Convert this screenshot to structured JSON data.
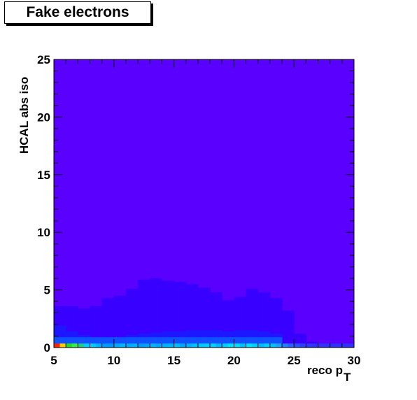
{
  "chart_data": {
    "type": "heatmap",
    "title": "Fake electrons",
    "xlabel": "reco p",
    "xlabel_subscript": "T",
    "ylabel": "HCAL abs iso",
    "xlim": [
      5,
      30
    ],
    "ylim": [
      0,
      25
    ],
    "x_ticks": [
      "5",
      "10",
      "15",
      "20",
      "25",
      "30"
    ],
    "y_ticks": [
      "0",
      "5",
      "10",
      "15",
      "20",
      "25"
    ],
    "colors": {
      "background": "#5a00ff",
      "level1": "#3700ff",
      "level2": "#1c17ff",
      "level3": "#0f50ff",
      "axis": "#000000"
    },
    "region_level1": {
      "description_x": "columns from 5 to 27 with upper edge in data units",
      "x": [
        5,
        6,
        7,
        8,
        9,
        10,
        11,
        12,
        13,
        14,
        15,
        16,
        17,
        18,
        19,
        20,
        21,
        22,
        23,
        24,
        25,
        26,
        27
      ],
      "y_top": [
        3.6,
        3.6,
        3.4,
        3.6,
        4.3,
        4.5,
        5.1,
        5.9,
        6.0,
        5.8,
        5.7,
        5.5,
        5.2,
        4.8,
        4.1,
        4.4,
        5.1,
        4.8,
        4.3,
        3.2,
        1.2,
        0.5
      ]
    },
    "region_level2": {
      "x": [
        5,
        6,
        7,
        8,
        9,
        10,
        11,
        12,
        13,
        14,
        15,
        16,
        17,
        18,
        19,
        20,
        21,
        22,
        23,
        24
      ],
      "y_top": [
        1.9,
        1.4,
        1.1,
        0.8,
        0.8,
        0.9,
        1.1,
        1.2,
        1.3,
        1.4,
        1.4,
        1.5,
        1.5,
        1.5,
        1.4,
        1.5,
        1.5,
        1.4,
        1.2
      ]
    },
    "bottom_row": {
      "x_start": 5,
      "x_end": 30,
      "bin_width": 0.5,
      "y_top": 0.35,
      "colors": [
        "#ff2200",
        "#ffcc00",
        "#22dd22",
        "#33ee44",
        "#22cc88",
        "#00ccff",
        "#00ccff",
        "#00b0ff",
        "#0099ff",
        "#0099ff",
        "#00a8ff",
        "#00b4ff",
        "#00aaff",
        "#00b0ff",
        "#0099ff",
        "#00a0ff",
        "#00b4ff",
        "#00a6ff",
        "#00b0ff",
        "#00b4ff",
        "#00bbff",
        "#00a6ff",
        "#00b0ff",
        "#00c0ff",
        "#00c8ff",
        "#00ccff",
        "#00d0ff",
        "#00b4ff",
        "#00ccff",
        "#00e0ff",
        "#00d8ff",
        "#00c0ff",
        "#00e0ff",
        "#00d0ff",
        "#00b8ff",
        "#00ccff",
        "#00c0ff",
        "#1ea0ff",
        "#1e80ff",
        "#2e60ff",
        "#2a50ff",
        "#2a40ff",
        "#3038ff",
        "#3030ff",
        "#3030ff",
        "#3030ff",
        "#3030ff",
        "#3030ff",
        "#3030ff",
        "#3030ff"
      ]
    }
  }
}
